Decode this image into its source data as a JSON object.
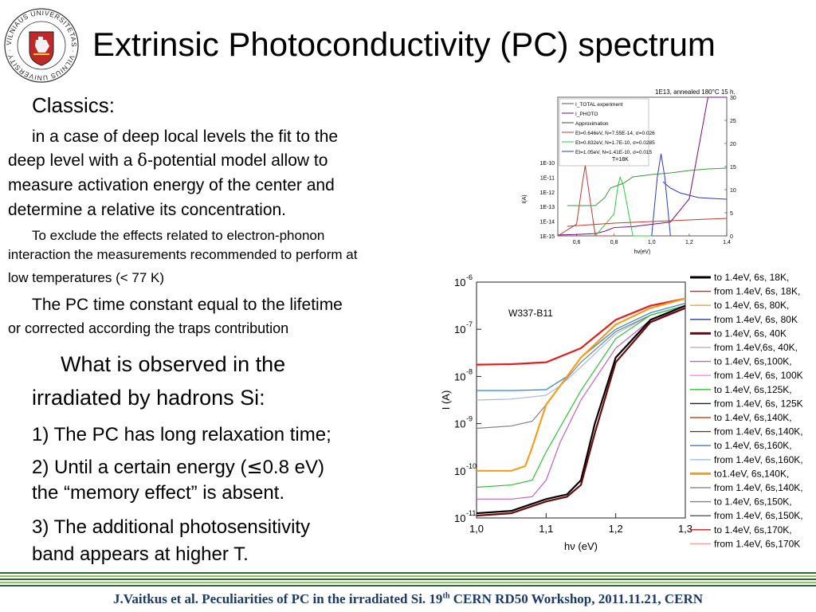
{
  "logo": {
    "ring_text": "VILNIAUS UNIVERSITETAS · VILNIUS UNIVERSITY · 1579 ·"
  },
  "title": "Extrinsic Photoconductivity (PC) spectrum",
  "left_text": {
    "heading": "Classics:",
    "para1_a": "in a case of deep local levels the fit to the",
    "para1_b": "deep level with a ",
    "para1_delta": "δ",
    "para1_c": "-potential model allow to",
    "para1_d": "measure activation energy of the center and",
    "para1_e": "determine a relative its concentration.",
    "para2_a": "To exclude the effects related to electron-phonon",
    "para2_b": "interaction the measurements recommended to perform at",
    "para2_c": "low temperatures (< 77 K)",
    "para3_a": "The PC time constant equal to the lifetime",
    "para3_b": "or corrected according the traps contribution",
    "heading2_a": "What is observed in the",
    "heading2_b": "irradiated by hadrons Si:",
    "item1": "1) The PC has long relaxation time;",
    "item2_a": "2) Until a certain energy (",
    "item2_le": "≤",
    "item2_b": "0.8 eV)",
    "item2_c": "the “memory effect” is absent.",
    "item3_a": "3) The additional photosensitivity",
    "item3_b": "band appears at higher T."
  },
  "footer": {
    "text_a": "J.Vaitkus et al. Peculiarities of PC in the irradiated Si. 19",
    "text_sup": "th",
    "text_b": " CERN RD50 Workshop, 2011.11.21, CERN"
  },
  "colors": {
    "footer_bar_dark": "#2e6b2a",
    "footer_bar_light": "#8fbf6a",
    "footer_text": "#1a3a6a"
  },
  "chart_data": [
    {
      "type": "line",
      "title": "1E13, annealed 180°C 15 h.",
      "xlabel": "hν(eV)",
      "ylabel": "I(A)",
      "xlim": [
        0.5,
        1.4
      ],
      "x_ticks": [
        "0,6",
        "0,8",
        "1,0",
        "1,2",
        "1,4"
      ],
      "y_ticks_left": [
        "1E-15",
        "1E-14",
        "1E-13",
        "1E-12",
        "1E-11",
        "1E-10"
      ],
      "y_ticks_right": [
        "0",
        "5",
        "10",
        "15",
        "20",
        "25",
        "30"
      ],
      "annotation": "T=18K",
      "legend": [
        {
          "label": "I_TOTAL experiment",
          "color": "#555555"
        },
        {
          "label": "I_PHOTO",
          "color": "#7a0a7a"
        },
        {
          "label": "Approximation",
          "color": "#444444"
        },
        {
          "label": "Et=0.646eV, N=7.55E-14, σ=0.026",
          "color": "#c0392b"
        },
        {
          "label": "Et=0.832eV, N=1.7E-10, σ=0.0285",
          "color": "#2ecc40"
        },
        {
          "label": "Et=1.05eV, N=1.41E-10, σ=0.015",
          "color": "#2a3ac0"
        }
      ],
      "series": [
        {
          "name": "I_TOTAL experiment",
          "x": [
            0.5,
            0.6,
            0.7,
            0.75,
            0.8,
            0.9,
            1.0,
            1.1,
            1.2,
            1.3,
            1.4
          ],
          "y_right": [
            0.2,
            0.3,
            0.5,
            1.0,
            1.8,
            2.0,
            2.5,
            3.0,
            8.0,
            30.0,
            30.0
          ]
        },
        {
          "name": "Et=0.646eV",
          "x": [
            0.5,
            0.6,
            0.63,
            0.646,
            0.66,
            0.7,
            0.8
          ],
          "y_log": [
            -15,
            -14.2,
            -11.5,
            -10.2,
            -11.5,
            -15,
            -15
          ]
        },
        {
          "name": "Et=0.832eV",
          "x": [
            0.7,
            0.8,
            0.82,
            0.832,
            0.85,
            0.9,
            1.0
          ],
          "y_log": [
            -15,
            -13.5,
            -11.6,
            -11.0,
            -11.6,
            -15,
            -15
          ]
        },
        {
          "name": "Et=1.05eV",
          "x": [
            1.0,
            1.03,
            1.05,
            1.07,
            1.1
          ],
          "y_log": [
            -15,
            -11,
            -9.4,
            -11,
            -15
          ]
        }
      ]
    },
    {
      "type": "line",
      "title": "",
      "annotation": "W337-B11",
      "xlabel": "hν (eV)",
      "ylabel": "I (A)",
      "xlim": [
        1.0,
        1.3
      ],
      "ylim_log10": [
        -11,
        -6
      ],
      "x_ticks": [
        "1,0",
        "1,1",
        "1,2",
        "1,3"
      ],
      "y_ticks_exp": [
        "-6",
        "-7",
        "-8",
        "-9",
        "-10",
        "-11"
      ],
      "legend": [
        {
          "label": "to 1.4eV, 6s, 18K,",
          "color": "#000000",
          "bold": true
        },
        {
          "label": "from 1.4eV, 6s, 18K,",
          "color": "#e02020"
        },
        {
          "label": "to 1.4eV, 6s, 80K,",
          "color": "#f0a030"
        },
        {
          "label": "from 1.4eV, 6s, 80K",
          "color": "#2a3aa0"
        },
        {
          "label": "to 1.4eV, 6s, 40K",
          "color": "#6a0a0a",
          "bold": true
        },
        {
          "label": "from 1.4eV,6s, 40K,",
          "color": "#bbbbbb"
        },
        {
          "label": " to 1.4eV, 6s,100K,",
          "color": "#c060c0"
        },
        {
          "label": "from 1.4eV, 6s, 100K",
          "color": "#ff80ff"
        },
        {
          "label": "to 1.4eV, 6s,125K,",
          "color": "#30c030"
        },
        {
          "label": "from 1.4eV, 6s, 125K",
          "color": "#202020"
        },
        {
          "label": "to  1.4eV, 6s,140K,",
          "color": "#c05020"
        },
        {
          "label": "from 1.4eV, 6s,140K,",
          "color": "#6a3a1a"
        },
        {
          "label": "to 1.4eV, 6s,160K,",
          "color": "#3080d0"
        },
        {
          "label": "from 1.4eV, 6s,160K,",
          "color": "#a0b8e8"
        },
        {
          "label": " to1.4eV, 6s,140K,",
          "color": "#f0a020",
          "bold": true
        },
        {
          "label": "from 1.4eV, 6s,140K,",
          "color": "#909090"
        },
        {
          "label": " to 1.4eV, 6s,150K,",
          "color": "#808080"
        },
        {
          "label": "from 1.4eV, 6s,150K,",
          "color": "#555555"
        },
        {
          "label": " to 1.4eV, 6s,170K,",
          "color": "#c02020"
        },
        {
          "label": " from 1.4eV, 6s,170K",
          "color": "#f0a0a0"
        }
      ],
      "series": [
        {
          "name": "from 1.4eV, 6s, 18K,",
          "color": "#e02020",
          "x": [
            1.0,
            1.05,
            1.1,
            1.15,
            1.2,
            1.25,
            1.3
          ],
          "y_log10": [
            -7.75,
            -7.74,
            -7.7,
            -7.4,
            -6.8,
            -6.5,
            -6.35
          ]
        },
        {
          "name": "to 1.4eV, 6s,160K,",
          "color": "#3080d0",
          "x": [
            1.0,
            1.05,
            1.1,
            1.13,
            1.15,
            1.2,
            1.25,
            1.3
          ],
          "y_log10": [
            -8.3,
            -8.3,
            -8.28,
            -8.0,
            -7.6,
            -7.0,
            -6.65,
            -6.45
          ]
        },
        {
          "name": "from 1.4eV, 6s,160K,",
          "color": "#a0b8e8",
          "x": [
            1.0,
            1.05,
            1.1,
            1.12,
            1.15,
            1.2,
            1.25,
            1.3
          ],
          "y_log10": [
            -8.5,
            -8.48,
            -8.4,
            -8.2,
            -7.8,
            -7.1,
            -6.7,
            -6.5
          ]
        },
        {
          "name": " to 1.4eV, 6s,150K,",
          "color": "#808080",
          "x": [
            1.0,
            1.05,
            1.08,
            1.1,
            1.12,
            1.15,
            1.2,
            1.25,
            1.3
          ],
          "y_log10": [
            -9.1,
            -9.05,
            -8.95,
            -8.6,
            -8.2,
            -7.7,
            -7.05,
            -6.7,
            -6.5
          ]
        },
        {
          "name": " to1.4eV, 6s,140K,",
          "color": "#f0a020",
          "x": [
            1.0,
            1.05,
            1.07,
            1.08,
            1.1,
            1.15,
            1.2,
            1.25,
            1.3
          ],
          "y_log10": [
            -10.0,
            -10.0,
            -9.9,
            -9.5,
            -8.6,
            -7.6,
            -6.9,
            -6.55,
            -6.35
          ]
        },
        {
          "name": "to 1.4eV, 6s,125K,",
          "color": "#30c030",
          "x": [
            1.0,
            1.05,
            1.08,
            1.1,
            1.15,
            1.2,
            1.25,
            1.3
          ],
          "y_log10": [
            -10.35,
            -10.3,
            -10.2,
            -9.6,
            -8.3,
            -7.2,
            -6.7,
            -6.5
          ]
        },
        {
          "name": " to 1.4eV, 6s,100K,",
          "color": "#c060c0",
          "x": [
            1.0,
            1.05,
            1.08,
            1.1,
            1.12,
            1.15,
            1.2,
            1.25,
            1.3
          ],
          "y_log10": [
            -10.6,
            -10.6,
            -10.55,
            -10.2,
            -9.4,
            -8.5,
            -7.4,
            -6.8,
            -6.55
          ]
        },
        {
          "name": "to 1.4eV, 6s, 18K,",
          "color": "#000000",
          "x": [
            1.0,
            1.05,
            1.1,
            1.13,
            1.15,
            1.17,
            1.2,
            1.25,
            1.3
          ],
          "y_log10": [
            -10.9,
            -10.85,
            -10.6,
            -10.5,
            -10.2,
            -9.0,
            -7.6,
            -6.8,
            -6.5
          ]
        },
        {
          "name": "to 1.4eV, 6s, 40K",
          "color": "#6a0a0a",
          "x": [
            1.0,
            1.05,
            1.1,
            1.13,
            1.15,
            1.17,
            1.2,
            1.25,
            1.3
          ],
          "y_log10": [
            -10.95,
            -10.9,
            -10.65,
            -10.55,
            -10.3,
            -9.2,
            -7.7,
            -6.85,
            -6.55
          ]
        }
      ]
    }
  ]
}
